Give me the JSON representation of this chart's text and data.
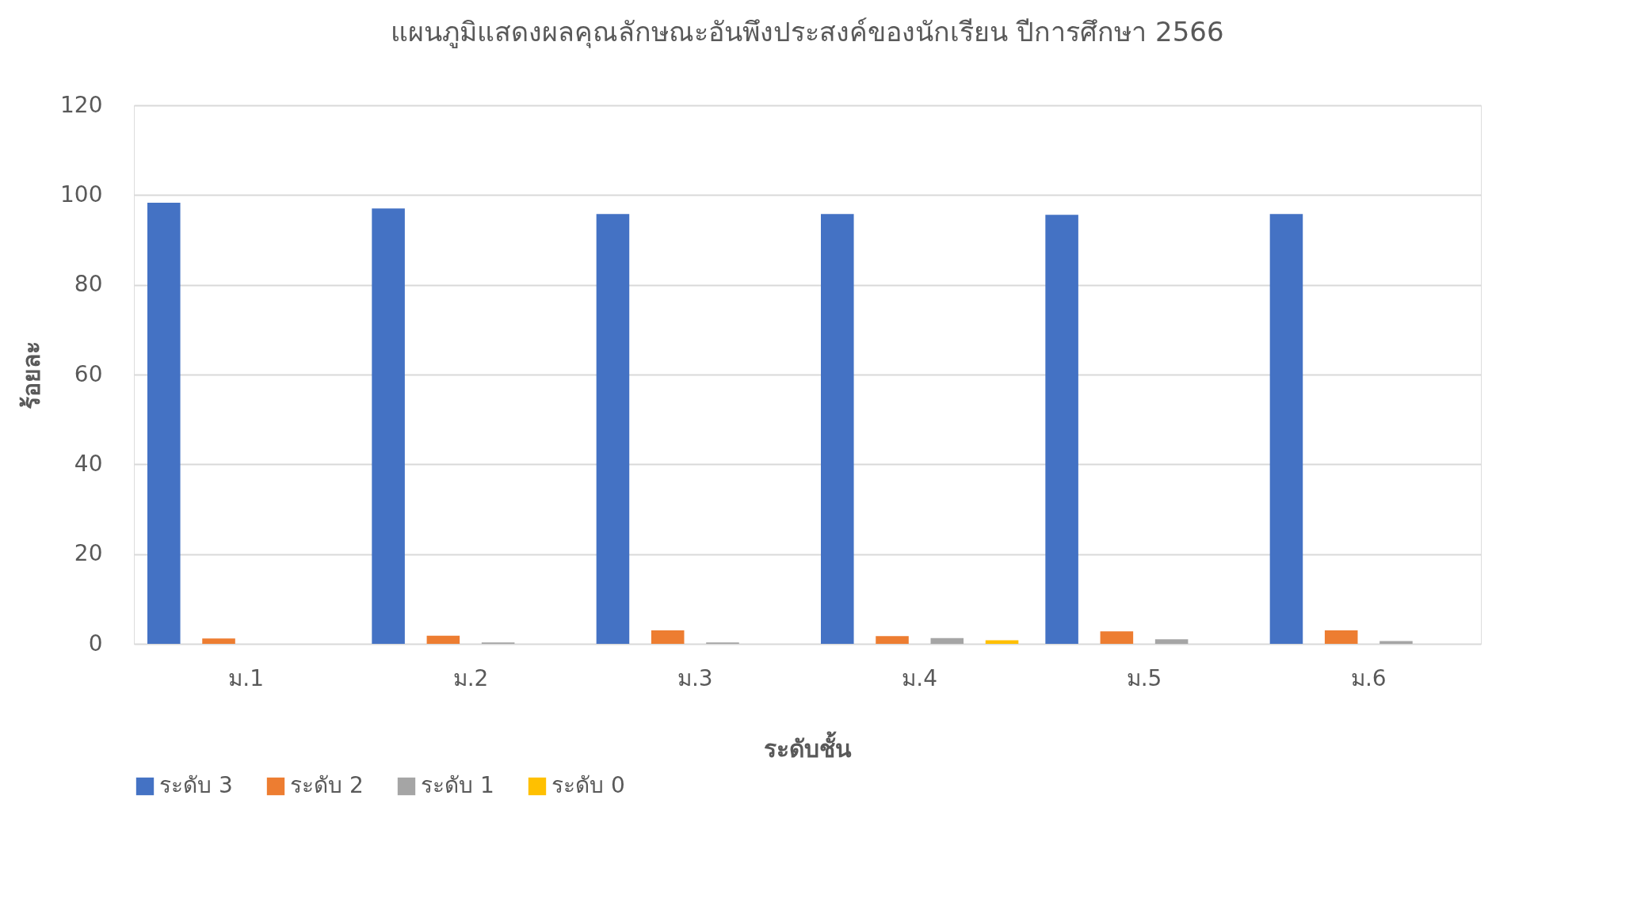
{
  "chart_data": {
    "type": "bar",
    "title": "แผนภูมิแสดงผลคุณลักษณะอันพึงประสงค์ของนักเรียน ปีการศึกษา 2566",
    "xlabel": "ระดับชั้น",
    "ylabel": "ร้อยละ",
    "categories": [
      "ม.1",
      "ม.2",
      "ม.3",
      "ม.4",
      "ม.5",
      "ม.6"
    ],
    "series": [
      {
        "name": "ระดับ 3",
        "color": "#4472c4",
        "values": [
          98.3,
          97.0,
          95.8,
          95.8,
          95.6,
          95.8
        ]
      },
      {
        "name": "ระดับ 2",
        "color": "#ed7d31",
        "values": [
          1.2,
          1.8,
          3.0,
          1.7,
          2.8,
          3.0
        ]
      },
      {
        "name": "ระดับ 1",
        "color": "#a5a5a5",
        "values": [
          0,
          0.3,
          0.3,
          1.3,
          1.0,
          0.6
        ]
      },
      {
        "name": "ระดับ 0",
        "color": "#ffc000",
        "values": [
          0,
          0,
          0,
          0.8,
          0,
          0
        ]
      }
    ],
    "ylim": [
      0,
      120
    ],
    "yticks": [
      0,
      20,
      40,
      60,
      80,
      100,
      120
    ],
    "grid": "y",
    "legend": "bottom"
  }
}
